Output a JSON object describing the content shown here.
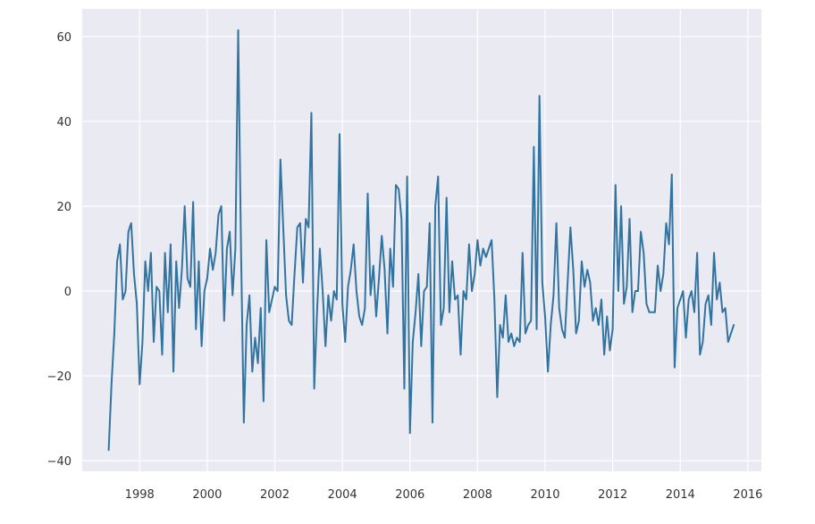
{
  "chart_data": {
    "type": "line",
    "title": "",
    "xlabel": "",
    "ylabel": "",
    "grid": true,
    "legend": "none",
    "background": "#eaeaf2",
    "grid_color": "#ffffff",
    "xlim": [
      1996.3,
      2016.4
    ],
    "ylim": [
      -42.5,
      66.5
    ],
    "x_ticks": [
      1998,
      2000,
      2002,
      2004,
      2006,
      2008,
      2010,
      2012,
      2014,
      2016
    ],
    "x_tick_labels": [
      "1998",
      "2000",
      "2002",
      "2004",
      "2006",
      "2008",
      "2010",
      "2012",
      "2014",
      "2016"
    ],
    "y_ticks": [
      -40,
      -20,
      0,
      20,
      40,
      60
    ],
    "y_tick_labels": [
      "−20",
      "0",
      "20",
      "40",
      "60"
    ],
    "y_tick_labels_full": [
      "−40",
      "−20",
      "0",
      "20",
      "40",
      "60"
    ],
    "series": [
      {
        "color": "#3274a1",
        "x_start": 1997.083,
        "x_step": 0.08333,
        "values": [
          -37.5,
          -22,
          -10,
          7,
          11,
          -2,
          0,
          14,
          16,
          4,
          -3,
          -22,
          -12,
          7,
          0,
          9,
          -12,
          1,
          0,
          -15,
          9,
          -5,
          11,
          -19,
          7,
          -4,
          5,
          20,
          3,
          1,
          21,
          -9,
          7,
          -13,
          0,
          3,
          10,
          5,
          9,
          18,
          20,
          -7,
          10,
          14,
          -1,
          10,
          61.5,
          10,
          -31,
          -8,
          -1,
          -19,
          -11,
          -17,
          -4,
          -26,
          12,
          -5,
          -2,
          1,
          0,
          31,
          15,
          -1,
          -7,
          -8,
          4,
          15,
          16,
          2,
          17,
          15,
          42,
          -23,
          -5,
          10,
          0,
          -13,
          -1,
          -7,
          0,
          -2,
          37,
          -3,
          -12,
          1,
          5,
          11,
          0,
          -6,
          -8,
          -4,
          23,
          -1,
          6,
          -6,
          3,
          13,
          5,
          -10,
          10,
          1,
          25,
          24,
          17,
          -23,
          27,
          -33.5,
          -12,
          -5,
          4,
          -13,
          0,
          1,
          16,
          -31,
          20,
          27,
          -8,
          -4,
          22,
          -5,
          7,
          -2,
          -1,
          -15,
          0,
          -2,
          11,
          0,
          4,
          12,
          6,
          10,
          8,
          10,
          12,
          -2,
          -25,
          -8,
          -11,
          -1,
          -12,
          -10,
          -13,
          -11,
          -12,
          9,
          -10,
          -8,
          -7,
          34,
          -9,
          46,
          2,
          -6,
          -19,
          -8,
          -1,
          16,
          -4,
          -9,
          -11,
          2,
          15,
          5,
          -10,
          -7,
          7,
          1,
          5,
          2,
          -7,
          -4,
          -8,
          -2,
          -15,
          -6,
          -14,
          -9,
          25,
          0,
          20,
          -3,
          1,
          17,
          -5,
          0,
          0,
          14,
          9,
          -3,
          -5,
          -5,
          -5,
          6,
          0,
          4,
          16,
          11,
          27.5,
          -18,
          -4,
          -2,
          0,
          -11,
          -2,
          0,
          -5,
          9,
          -15,
          -12,
          -3,
          -1,
          -8,
          9,
          -2,
          2,
          -5,
          -4,
          -12,
          -10,
          -8
        ]
      }
    ]
  }
}
